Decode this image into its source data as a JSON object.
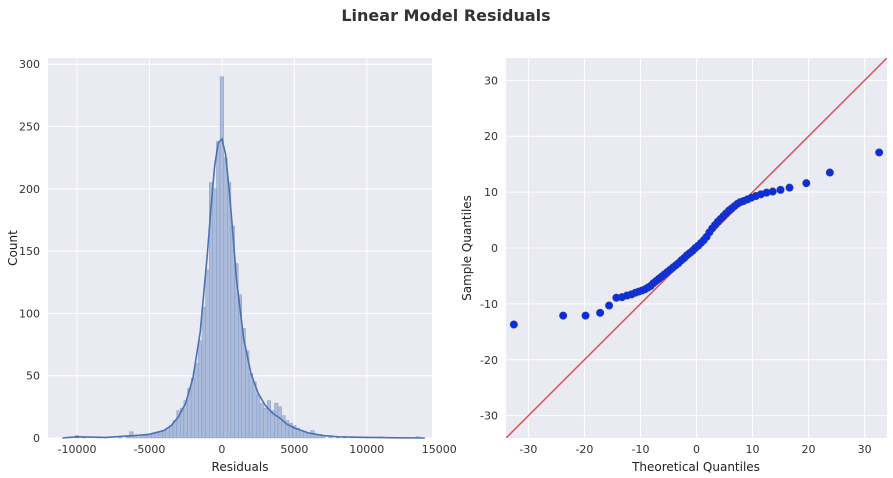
{
  "title": "Linear Model Residuals",
  "colors": {
    "panel_bg": "#eaeaf2",
    "grid": "#ffffff",
    "hist_fill": "#a5b6d7",
    "hist_edge": "#7f97c6",
    "kde_line": "#4c72b0",
    "qq_point": "#0d2be0",
    "qq_point_edge": "#1f3fa8",
    "ref_line": "#d65454"
  },
  "chart_data": [
    {
      "type": "bar",
      "subtype": "histogram",
      "xlabel": "Residuals",
      "ylabel": "Count",
      "xlim": [
        -12000,
        14500
      ],
      "ylim": [
        0,
        305
      ],
      "xticks": [
        -10000,
        -5000,
        0,
        5000,
        10000,
        15000
      ],
      "xtick_labels": [
        "-10000",
        "-5000",
        "0",
        "5000",
        "10000",
        "15000"
      ],
      "yticks": [
        0,
        50,
        100,
        150,
        200,
        250,
        300
      ],
      "ytick_labels": [
        "0",
        "50",
        "100",
        "150",
        "200",
        "250",
        "300"
      ],
      "grid": true,
      "bin_width": 250,
      "bins": [
        {
          "x": -11000,
          "count": 0
        },
        {
          "x": -10500,
          "count": 1
        },
        {
          "x": -10000,
          "count": 2
        },
        {
          "x": -9500,
          "count": 1
        },
        {
          "x": -9000,
          "count": 0
        },
        {
          "x": -8500,
          "count": 1
        },
        {
          "x": -8000,
          "count": 1
        },
        {
          "x": -7500,
          "count": 0
        },
        {
          "x": -7000,
          "count": 1
        },
        {
          "x": -6500,
          "count": 1
        },
        {
          "x": -6250,
          "count": 5
        },
        {
          "x": -6000,
          "count": 2
        },
        {
          "x": -5750,
          "count": 1
        },
        {
          "x": -5500,
          "count": 2
        },
        {
          "x": -5250,
          "count": 2
        },
        {
          "x": -5000,
          "count": 3
        },
        {
          "x": -4750,
          "count": 4
        },
        {
          "x": -4500,
          "count": 4
        },
        {
          "x": -4250,
          "count": 5
        },
        {
          "x": -4000,
          "count": 6
        },
        {
          "x": -3750,
          "count": 8
        },
        {
          "x": -3500,
          "count": 10
        },
        {
          "x": -3250,
          "count": 14
        },
        {
          "x": -3000,
          "count": 22
        },
        {
          "x": -2750,
          "count": 24
        },
        {
          "x": -2500,
          "count": 30
        },
        {
          "x": -2250,
          "count": 40
        },
        {
          "x": -2000,
          "count": 48
        },
        {
          "x": -1750,
          "count": 60
        },
        {
          "x": -1500,
          "count": 78
        },
        {
          "x": -1250,
          "count": 105
        },
        {
          "x": -1000,
          "count": 135
        },
        {
          "x": -750,
          "count": 205
        },
        {
          "x": -500,
          "count": 200
        },
        {
          "x": -250,
          "count": 238
        },
        {
          "x": 0,
          "count": 290
        },
        {
          "x": 250,
          "count": 225
        },
        {
          "x": 500,
          "count": 205
        },
        {
          "x": 750,
          "count": 170
        },
        {
          "x": 1000,
          "count": 140
        },
        {
          "x": 1250,
          "count": 115
        },
        {
          "x": 1500,
          "count": 88
        },
        {
          "x": 1750,
          "count": 70
        },
        {
          "x": 2000,
          "count": 52
        },
        {
          "x": 2250,
          "count": 45
        },
        {
          "x": 2500,
          "count": 35
        },
        {
          "x": 2750,
          "count": 28
        },
        {
          "x": 3000,
          "count": 24
        },
        {
          "x": 3250,
          "count": 30
        },
        {
          "x": 3500,
          "count": 22
        },
        {
          "x": 3750,
          "count": 28
        },
        {
          "x": 4000,
          "count": 25
        },
        {
          "x": 4250,
          "count": 18
        },
        {
          "x": 4500,
          "count": 14
        },
        {
          "x": 4750,
          "count": 12
        },
        {
          "x": 5000,
          "count": 10
        },
        {
          "x": 5250,
          "count": 8
        },
        {
          "x": 5500,
          "count": 6
        },
        {
          "x": 5750,
          "count": 5
        },
        {
          "x": 6000,
          "count": 4
        },
        {
          "x": 6250,
          "count": 6
        },
        {
          "x": 6500,
          "count": 3
        },
        {
          "x": 6750,
          "count": 3
        },
        {
          "x": 7000,
          "count": 2
        },
        {
          "x": 7500,
          "count": 2
        },
        {
          "x": 8000,
          "count": 1
        },
        {
          "x": 8500,
          "count": 1
        },
        {
          "x": 9000,
          "count": 1
        },
        {
          "x": 9500,
          "count": 1
        },
        {
          "x": 10000,
          "count": 1
        },
        {
          "x": 11000,
          "count": 1
        },
        {
          "x": 12000,
          "count": 0
        },
        {
          "x": 13500,
          "count": 1
        }
      ],
      "kde": [
        {
          "x": -11000,
          "y": 0
        },
        {
          "x": -10000,
          "y": 1
        },
        {
          "x": -8000,
          "y": 0.5
        },
        {
          "x": -6000,
          "y": 2
        },
        {
          "x": -5000,
          "y": 3
        },
        {
          "x": -4000,
          "y": 6
        },
        {
          "x": -3500,
          "y": 10
        },
        {
          "x": -3000,
          "y": 17
        },
        {
          "x": -2500,
          "y": 28
        },
        {
          "x": -2000,
          "y": 48
        },
        {
          "x": -1500,
          "y": 85
        },
        {
          "x": -1000,
          "y": 148
        },
        {
          "x": -750,
          "y": 185
        },
        {
          "x": -500,
          "y": 218
        },
        {
          "x": -250,
          "y": 237
        },
        {
          "x": 0,
          "y": 240
        },
        {
          "x": 250,
          "y": 228
        },
        {
          "x": 500,
          "y": 200
        },
        {
          "x": 750,
          "y": 165
        },
        {
          "x": 1000,
          "y": 128
        },
        {
          "x": 1500,
          "y": 80
        },
        {
          "x": 2000,
          "y": 52
        },
        {
          "x": 2500,
          "y": 36
        },
        {
          "x": 3000,
          "y": 26
        },
        {
          "x": 3500,
          "y": 20
        },
        {
          "x": 4000,
          "y": 16
        },
        {
          "x": 4500,
          "y": 11
        },
        {
          "x": 5000,
          "y": 8
        },
        {
          "x": 6000,
          "y": 4
        },
        {
          "x": 7000,
          "y": 2
        },
        {
          "x": 8000,
          "y": 1
        },
        {
          "x": 10000,
          "y": 0.5
        },
        {
          "x": 12000,
          "y": 0.2
        },
        {
          "x": 14000,
          "y": 0
        }
      ]
    },
    {
      "type": "scatter",
      "subtype": "qq-plot",
      "xlabel": "Theoretical Quantiles",
      "ylabel": "Sample Quantiles",
      "xlim": [
        -34,
        34
      ],
      "ylim": [
        -34,
        34
      ],
      "xticks": [
        -30,
        -20,
        -10,
        0,
        10,
        20,
        30
      ],
      "xtick_labels": [
        "-30",
        "-20",
        "-10",
        "0",
        "10",
        "20",
        "30"
      ],
      "yticks": [
        -30,
        -20,
        -10,
        0,
        10,
        20,
        30
      ],
      "ytick_labels": [
        "-30",
        "-20",
        "-10",
        "0",
        "10",
        "20",
        "30"
      ],
      "grid": true,
      "reference_line": {
        "slope": 1,
        "intercept": 0
      },
      "points": [
        [
          -32.6,
          -13.7
        ],
        [
          -23.8,
          -12.1
        ],
        [
          -19.8,
          -12.1
        ],
        [
          -17.2,
          -11.6
        ],
        [
          -15.6,
          -10.3
        ],
        [
          -14.3,
          -8.9
        ],
        [
          -13.3,
          -8.8
        ],
        [
          -12.4,
          -8.5
        ],
        [
          -11.6,
          -8.3
        ],
        [
          -10.9,
          -8.0
        ],
        [
          -10.3,
          -7.8
        ],
        [
          -9.7,
          -7.6
        ],
        [
          -9.2,
          -7.4
        ],
        [
          -8.7,
          -7.1
        ],
        [
          -8.2,
          -6.8
        ],
        [
          -7.7,
          -6.3
        ],
        [
          -7.2,
          -5.9
        ],
        [
          -6.7,
          -5.5
        ],
        [
          -6.2,
          -5.1
        ],
        [
          -5.7,
          -4.7
        ],
        [
          -5.2,
          -4.3
        ],
        [
          -4.7,
          -3.9
        ],
        [
          -4.2,
          -3.5
        ],
        [
          -3.7,
          -3.1
        ],
        [
          -3.2,
          -2.7
        ],
        [
          -2.7,
          -2.2
        ],
        [
          -2.2,
          -1.8
        ],
        [
          -1.7,
          -1.3
        ],
        [
          -1.2,
          -0.9
        ],
        [
          -0.7,
          -0.5
        ],
        [
          -0.2,
          0.0
        ],
        [
          0.3,
          0.4
        ],
        [
          0.8,
          0.9
        ],
        [
          1.3,
          1.4
        ],
        [
          1.8,
          2.0
        ],
        [
          2.3,
          2.8
        ],
        [
          2.8,
          3.5
        ],
        [
          3.3,
          4.1
        ],
        [
          3.8,
          4.7
        ],
        [
          4.3,
          5.2
        ],
        [
          4.8,
          5.7
        ],
        [
          5.3,
          6.2
        ],
        [
          5.8,
          6.7
        ],
        [
          6.3,
          7.1
        ],
        [
          6.8,
          7.5
        ],
        [
          7.3,
          7.9
        ],
        [
          7.8,
          8.2
        ],
        [
          8.4,
          8.4
        ],
        [
          9.1,
          8.7
        ],
        [
          9.8,
          9.0
        ],
        [
          10.6,
          9.3
        ],
        [
          11.5,
          9.6
        ],
        [
          12.5,
          9.9
        ],
        [
          13.6,
          10.1
        ],
        [
          15.0,
          10.4
        ],
        [
          16.6,
          10.8
        ],
        [
          19.6,
          11.6
        ],
        [
          23.8,
          13.5
        ],
        [
          32.6,
          17.1
        ]
      ]
    }
  ]
}
